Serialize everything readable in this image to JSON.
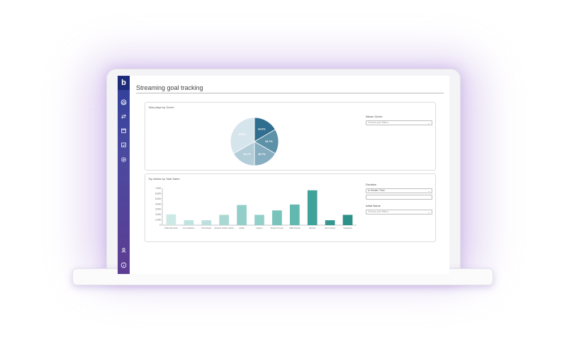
{
  "app": {
    "logo": "b"
  },
  "page": {
    "title": "Streaming goal tracking"
  },
  "sidebar": {
    "items": [
      {
        "icon": "home-icon"
      },
      {
        "icon": "transfer-icon"
      },
      {
        "icon": "calendar-icon"
      },
      {
        "icon": "calendar-check-icon"
      },
      {
        "icon": "gear-icon"
      },
      {
        "icon": "user-icon"
      },
      {
        "icon": "info-icon"
      }
    ]
  },
  "pie_panel": {
    "title": "Total plays by Genre",
    "filter": {
      "label": "Album Genre",
      "placeholder": "Choose your filters..."
    }
  },
  "bar_panel": {
    "title": "Top Artists by Total Sales",
    "duration_filter": {
      "label": "Duration",
      "value": "Is Greater Than"
    },
    "artist_filter": {
      "label": "Artist Name",
      "placeholder": "Choose your filters..."
    }
  },
  "colors": {
    "pie": [
      "#2f6e8e",
      "#5c91a8",
      "#86aec0",
      "#b3cdd9",
      "#d6e5ec"
    ],
    "bars": [
      "#cde9e6",
      "#bfe3df",
      "#bde0dc",
      "#a9d8d3",
      "#92cfc9",
      "#94d0ca",
      "#78c3bc",
      "#63b8b0",
      "#3fa39b",
      "#35978f",
      "#2e9189"
    ]
  },
  "chart_data": [
    {
      "type": "pie",
      "title": "Total plays by Genre",
      "slices": [
        {
          "label": "16.6%",
          "value": 16.6
        },
        {
          "label": "16.7%",
          "value": 16.7
        },
        {
          "label": "16.7%",
          "value": 16.7
        },
        {
          "label": "16.7%",
          "value": 16.7
        },
        {
          "label": "33.3%",
          "value": 33.3
        }
      ]
    },
    {
      "type": "bar",
      "title": "Top Artists by Total Sales",
      "categories": [
        "Nicks Perreira",
        "Foo Fighters",
        "Pink Floyd",
        "Antonio Carlos Jobim",
        "Audio",
        "Queen",
        "Kings Of Leon",
        "Titãs Zurara",
        "Various",
        "Jono Kenny",
        "Sepultura"
      ],
      "values": [
        2200,
        1000,
        1000,
        2100,
        4100,
        2100,
        3000,
        4200,
        7100,
        1000,
        2100
      ],
      "yticks": [
        "7,000",
        "6,000",
        "5,000",
        "4,000",
        "3,000",
        "2,000",
        "1,000",
        "0"
      ],
      "ylim": [
        0,
        7500
      ]
    }
  ]
}
